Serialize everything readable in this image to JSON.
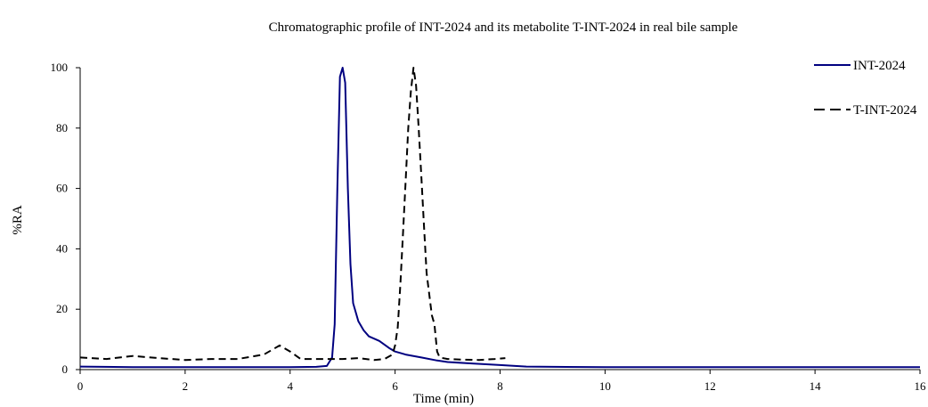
{
  "chart_data": {
    "type": "line",
    "title": "Chromatographic profile of INT-2024 and its metabolite T-INT-2024 in real bile sample",
    "xlabel": "Time (min)",
    "ylabel": "%RA",
    "xlim": [
      0,
      16
    ],
    "ylim": [
      0,
      100
    ],
    "xticks": [
      0,
      2,
      4,
      6,
      8,
      10,
      12,
      14,
      16
    ],
    "yticks": [
      0,
      20,
      40,
      60,
      80,
      100
    ],
    "grid": false,
    "legend_position": "top-right",
    "series": [
      {
        "name": "INT-2024",
        "color": "#000080",
        "dash": "solid",
        "points": [
          [
            0,
            1
          ],
          [
            1,
            0.8
          ],
          [
            2,
            0.8
          ],
          [
            3,
            0.8
          ],
          [
            4,
            0.8
          ],
          [
            4.5,
            0.9
          ],
          [
            4.7,
            1.2
          ],
          [
            4.8,
            4
          ],
          [
            4.85,
            15
          ],
          [
            4.9,
            60
          ],
          [
            4.95,
            97
          ],
          [
            5.0,
            100
          ],
          [
            5.05,
            95
          ],
          [
            5.1,
            60
          ],
          [
            5.15,
            35
          ],
          [
            5.2,
            22
          ],
          [
            5.3,
            16
          ],
          [
            5.4,
            13
          ],
          [
            5.5,
            11
          ],
          [
            5.7,
            9.5
          ],
          [
            5.9,
            7
          ],
          [
            6.0,
            6
          ],
          [
            6.2,
            5
          ],
          [
            6.5,
            4
          ],
          [
            6.8,
            3
          ],
          [
            7.0,
            2.5
          ],
          [
            7.5,
            2
          ],
          [
            8.0,
            1.5
          ],
          [
            8.5,
            1
          ],
          [
            10,
            0.8
          ],
          [
            12,
            0.8
          ],
          [
            14,
            0.8
          ],
          [
            16,
            0.8
          ]
        ]
      },
      {
        "name": "T-INT-2024",
        "color": "#000000",
        "dash": "dashed",
        "points": [
          [
            0,
            4
          ],
          [
            0.5,
            3.5
          ],
          [
            1,
            4.5
          ],
          [
            1.5,
            3.8
          ],
          [
            2,
            3.2
          ],
          [
            2.5,
            3.5
          ],
          [
            3,
            3.5
          ],
          [
            3.5,
            5
          ],
          [
            3.8,
            8
          ],
          [
            4.0,
            6
          ],
          [
            4.2,
            3.5
          ],
          [
            4.5,
            3.5
          ],
          [
            4.8,
            3.5
          ],
          [
            5.0,
            3.5
          ],
          [
            5.3,
            3.8
          ],
          [
            5.6,
            3.2
          ],
          [
            5.8,
            3.5
          ],
          [
            5.95,
            5
          ],
          [
            6.0,
            8
          ],
          [
            6.05,
            14
          ],
          [
            6.1,
            28
          ],
          [
            6.15,
            45
          ],
          [
            6.2,
            62
          ],
          [
            6.25,
            80
          ],
          [
            6.3,
            92
          ],
          [
            6.35,
            100
          ],
          [
            6.4,
            94
          ],
          [
            6.45,
            80
          ],
          [
            6.5,
            64
          ],
          [
            6.55,
            48
          ],
          [
            6.6,
            32
          ],
          [
            6.7,
            18
          ],
          [
            6.75,
            15
          ],
          [
            6.8,
            6
          ],
          [
            6.85,
            4
          ],
          [
            7.0,
            3.5
          ],
          [
            7.3,
            3.3
          ],
          [
            7.6,
            3.2
          ],
          [
            7.9,
            3.5
          ],
          [
            8.1,
            3.8
          ]
        ]
      }
    ]
  }
}
